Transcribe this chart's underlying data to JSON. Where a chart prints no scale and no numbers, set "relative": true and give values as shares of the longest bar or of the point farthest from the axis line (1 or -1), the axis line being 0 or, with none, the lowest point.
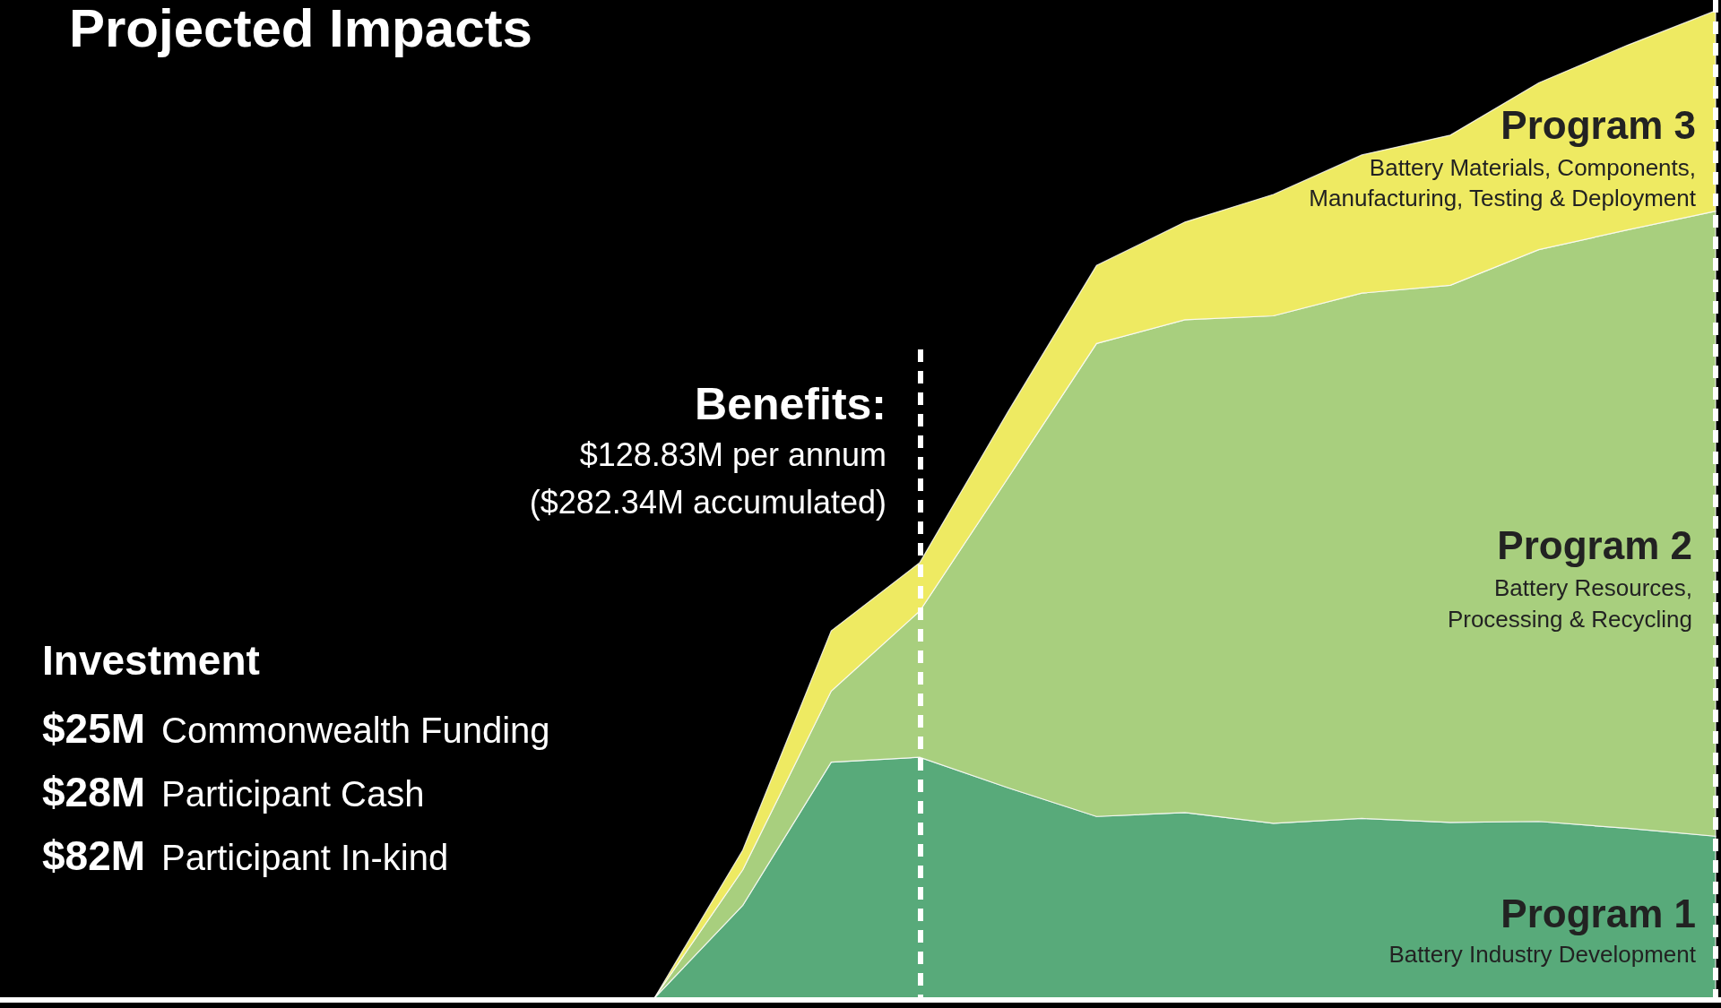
{
  "chart_data": {
    "type": "area",
    "title": "Projected Impacts",
    "relative": true,
    "stacked": true,
    "legend": false,
    "categories": [
      null,
      null,
      null,
      null,
      null,
      null,
      null,
      null,
      null,
      null,
      null,
      null,
      null
    ],
    "series": [
      {
        "name": "Program 1",
        "color": "#58aa7a",
        "values": [
          0,
          0.094,
          0.239,
          0.244,
          0.213,
          0.184,
          0.188,
          0.177,
          0.182,
          0.178,
          0.179,
          0.172,
          0.164
        ]
      },
      {
        "name": "Program 2",
        "color": "#a8cf7e",
        "values": [
          0,
          0.036,
          0.072,
          0.148,
          0.314,
          0.479,
          0.499,
          0.514,
          0.532,
          0.544,
          0.579,
          0.606,
          0.633
        ]
      },
      {
        "name": "Program 3",
        "color": "#eeea62",
        "values": [
          0,
          0.02,
          0.061,
          0.049,
          0.067,
          0.079,
          0.099,
          0.123,
          0.14,
          0.152,
          0.169,
          0.187,
          0.203
        ]
      }
    ],
    "annotations": [
      "Benefits:",
      "$128.83M per annum",
      "($282.34M accumulated)",
      "Investment",
      "$25M",
      "Commonwealth Funding",
      "$28M",
      "Participant Cash",
      "$82M",
      "Participant In-kind",
      "Battery Materials, Components,",
      "Manufacturing, Testing & Deployment",
      "Battery Resources,",
      "Processing & Recycling",
      "Battery Industry Development"
    ]
  }
}
